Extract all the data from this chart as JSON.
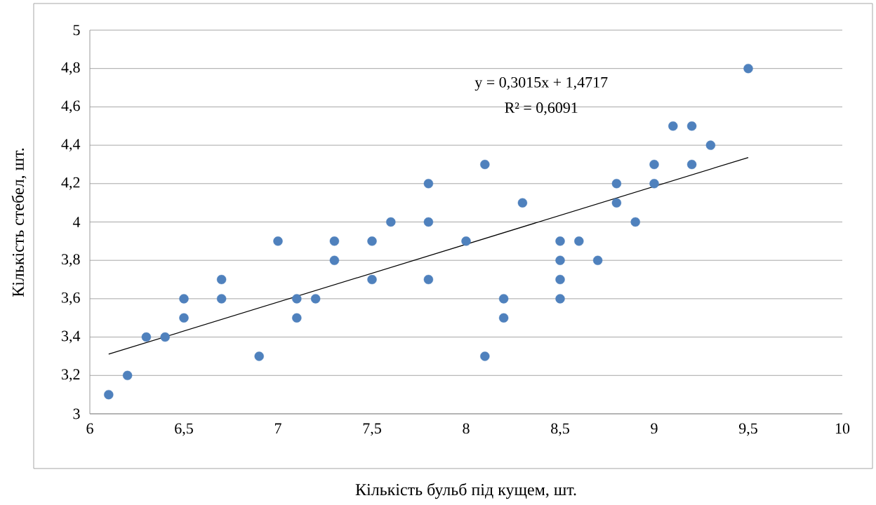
{
  "chart_data": {
    "type": "scatter",
    "xlabel": "Кількість бульб під кущем, шт.",
    "ylabel": "Кількість стебел, шт.",
    "annotations": [
      "y = 0,3015x + 1,4717",
      "R² = 0,6091"
    ],
    "series": [
      {
        "color": "#4f81bd",
        "marker": "circle",
        "x": [
          6.1,
          6.2,
          6.3,
          6.4,
          6.5,
          6.5,
          6.7,
          6.7,
          6.9,
          7.0,
          7.1,
          7.1,
          7.2,
          7.3,
          7.3,
          7.5,
          7.5,
          7.6,
          7.8,
          7.8,
          7.8,
          8.0,
          8.1,
          8.1,
          8.2,
          8.2,
          8.3,
          8.5,
          8.5,
          8.5,
          8.5,
          8.6,
          8.7,
          8.8,
          8.8,
          8.9,
          9.0,
          9.0,
          9.1,
          9.2,
          9.2,
          9.3,
          9.5
        ],
        "values": [
          3.1,
          3.2,
          3.4,
          3.4,
          3.6,
          3.5,
          3.7,
          3.6,
          3.3,
          3.9,
          3.6,
          3.5,
          3.6,
          3.9,
          3.8,
          3.9,
          3.7,
          4.0,
          4.2,
          4.0,
          3.7,
          3.9,
          4.3,
          3.3,
          3.6,
          3.5,
          4.1,
          3.9,
          3.8,
          3.7,
          3.6,
          3.9,
          3.8,
          4.2,
          4.1,
          4.0,
          4.3,
          4.2,
          4.5,
          4.5,
          4.3,
          4.4,
          4.8
        ]
      },
      {
        "type": "line",
        "color": "#000000",
        "marker": "none",
        "x": [
          6.1,
          9.5
        ],
        "values": [
          3.311,
          4.336
        ]
      }
    ],
    "xlim": [
      6,
      10
    ],
    "ylim": [
      3,
      5
    ],
    "xticks": [
      6,
      {
        "value": 6.5,
        "label": "6,5"
      },
      7,
      {
        "value": 7.5,
        "label": "7,5"
      },
      8,
      {
        "value": 8.5,
        "label": "8,5"
      },
      9,
      {
        "value": 9.5,
        "label": "9,5"
      },
      10
    ],
    "yticks": [
      3,
      {
        "value": 3.2,
        "label": "3,2"
      },
      {
        "value": 3.4,
        "label": "3,4"
      },
      {
        "value": 3.6,
        "label": "3,6"
      },
      {
        "value": 3.8,
        "label": "3,8"
      },
      4,
      {
        "value": 4.2,
        "label": "4,2"
      },
      {
        "value": 4.4,
        "label": "4,4"
      },
      {
        "value": 4.6,
        "label": "4,6"
      },
      {
        "value": 4.8,
        "label": "4,8"
      },
      5
    ],
    "grid": "y"
  }
}
